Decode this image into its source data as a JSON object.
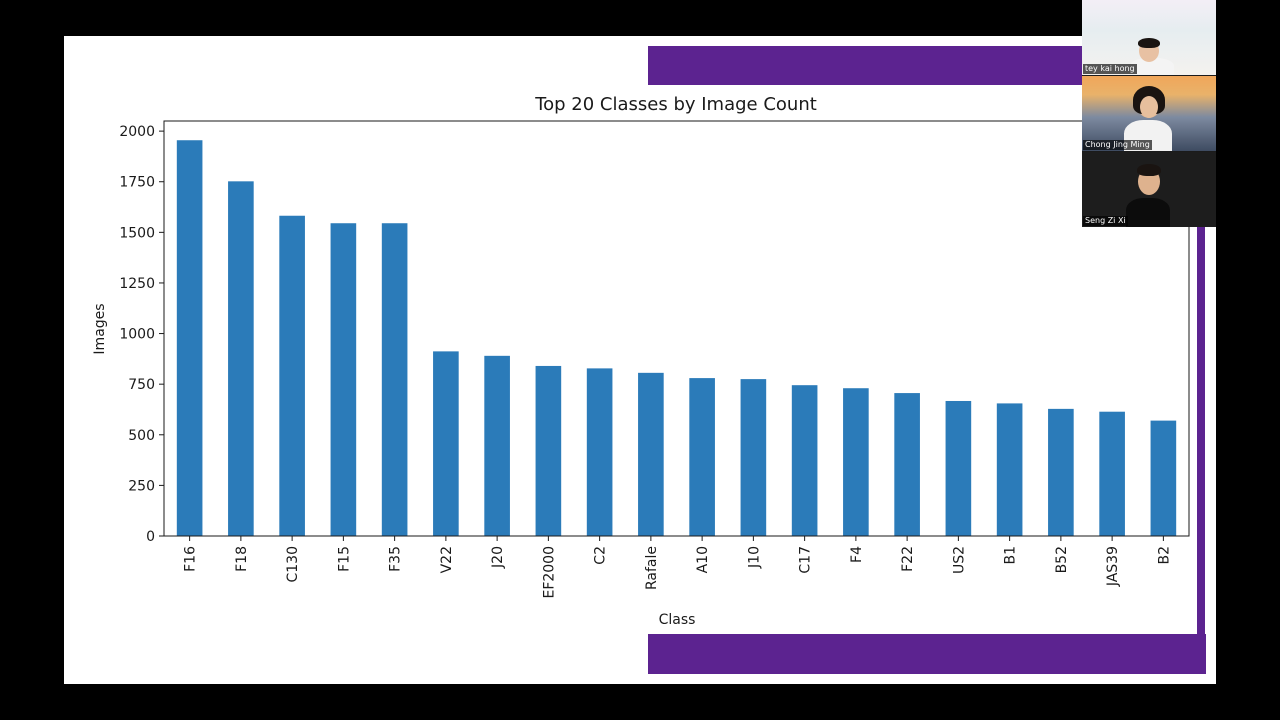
{
  "chart_data": {
    "type": "bar",
    "title": "Top 20 Classes by Image Count",
    "xlabel": "Class",
    "ylabel": "Images",
    "ylim": [
      0,
      2050
    ],
    "yticks": [
      0,
      250,
      500,
      750,
      1000,
      1250,
      1500,
      1750,
      2000
    ],
    "categories": [
      "F16",
      "F18",
      "C130",
      "F15",
      "F35",
      "V22",
      "J20",
      "EF2000",
      "C2",
      "Rafale",
      "A10",
      "J10",
      "C17",
      "F4",
      "F22",
      "US2",
      "B1",
      "B52",
      "JAS39",
      "B2"
    ],
    "values": [
      1955,
      1752,
      1582,
      1545,
      1545,
      912,
      890,
      840,
      828,
      806,
      780,
      775,
      745,
      730,
      706,
      667,
      655,
      628,
      614,
      570
    ],
    "bar_color": "#2b7bb9",
    "grid": false,
    "legend": "none"
  },
  "slide": {
    "accent_color": "#5c2390"
  },
  "participants": [
    {
      "name": "tey kai hong"
    },
    {
      "name": "Chong Jing Ming"
    },
    {
      "name": "Seng Zi Xi"
    }
  ]
}
